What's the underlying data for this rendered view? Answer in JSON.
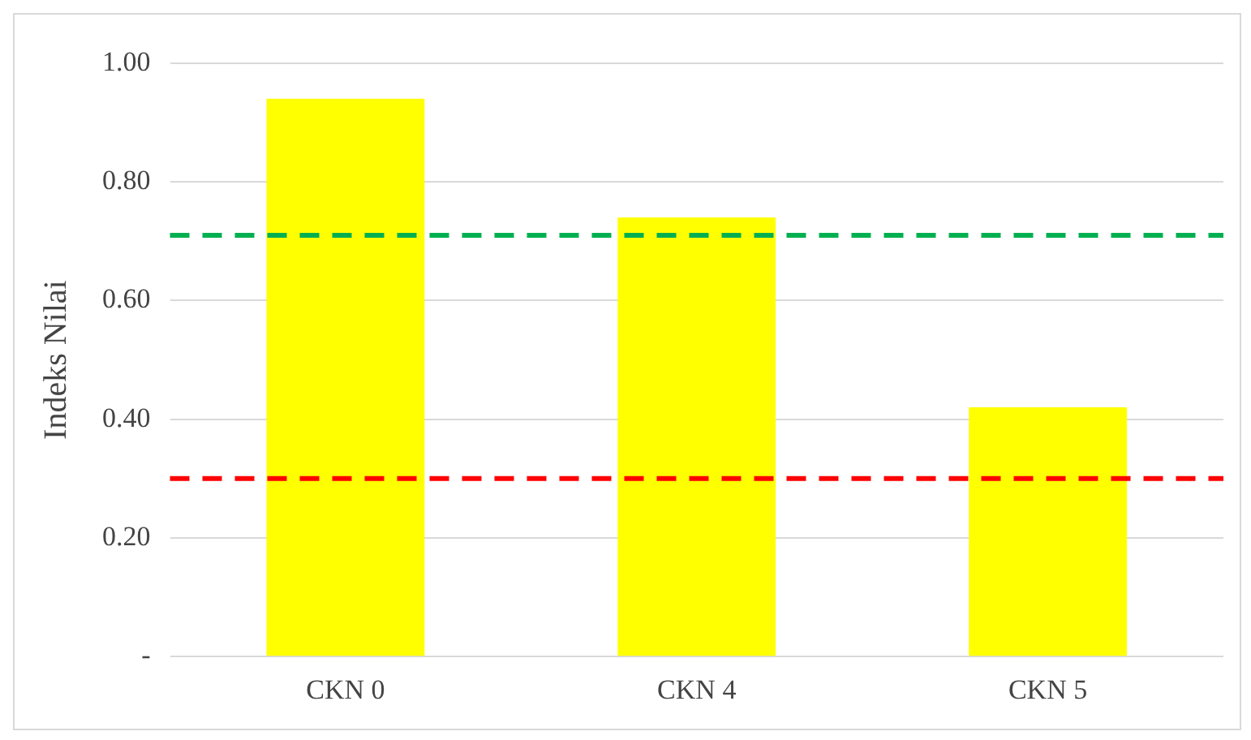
{
  "chart_data": {
    "type": "bar",
    "ylabel": "Indeks Nilai",
    "categories": [
      "CKN 0",
      "CKN 4",
      "CKN 5"
    ],
    "values": [
      0.94,
      0.74,
      0.42
    ],
    "color": "#ffff00",
    "ylim": [
      0,
      1
    ],
    "yticks": [
      {
        "value": 0,
        "label": "-"
      },
      {
        "value": 0.2,
        "label": "0.20"
      },
      {
        "value": 0.4,
        "label": "0.40"
      },
      {
        "value": 0.6,
        "label": "0.60"
      },
      {
        "value": 0.8,
        "label": "0.80"
      },
      {
        "value": 1,
        "label": "1.00"
      }
    ],
    "grid": "y",
    "legend": false,
    "ref_lines": [
      {
        "axis": "y",
        "value": 0.71,
        "color": "#00b050",
        "line_style": "dashed"
      },
      {
        "axis": "y",
        "value": 0.3,
        "color": "#ff0000",
        "line_style": "dashed"
      }
    ]
  }
}
